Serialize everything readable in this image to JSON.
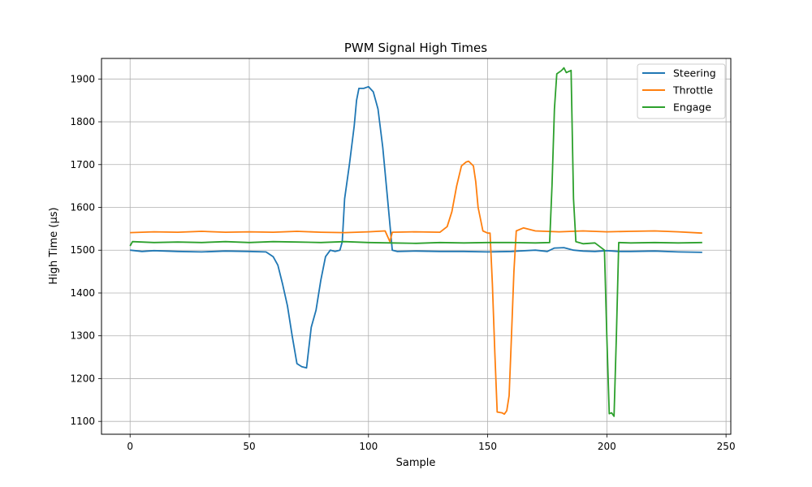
{
  "chart_data": {
    "type": "line",
    "title": "PWM Signal High Times",
    "xlabel": "Sample",
    "ylabel": "High Time (µs)",
    "xlim": [
      -12,
      252
    ],
    "ylim": [
      1070,
      1948
    ],
    "xticks": [
      0,
      50,
      100,
      150,
      200,
      250
    ],
    "yticks": [
      1100,
      1200,
      1300,
      1400,
      1500,
      1600,
      1700,
      1800,
      1900
    ],
    "grid": true,
    "legend_position": "top-right",
    "series": [
      {
        "name": "Steering",
        "color": "#1f77b4",
        "points": [
          [
            0,
            1500
          ],
          [
            5,
            1497
          ],
          [
            10,
            1499
          ],
          [
            20,
            1497
          ],
          [
            30,
            1496
          ],
          [
            40,
            1498
          ],
          [
            50,
            1497
          ],
          [
            57,
            1496
          ],
          [
            60,
            1485
          ],
          [
            62,
            1465
          ],
          [
            64,
            1420
          ],
          [
            66,
            1370
          ],
          [
            68,
            1300
          ],
          [
            70,
            1235
          ],
          [
            72,
            1228
          ],
          [
            74,
            1225
          ],
          [
            76,
            1320
          ],
          [
            78,
            1360
          ],
          [
            80,
            1430
          ],
          [
            82,
            1485
          ],
          [
            84,
            1500
          ],
          [
            86,
            1497
          ],
          [
            88,
            1500
          ],
          [
            89,
            1520
          ],
          [
            90,
            1620
          ],
          [
            92,
            1700
          ],
          [
            94,
            1790
          ],
          [
            95,
            1850
          ],
          [
            96,
            1878
          ],
          [
            98,
            1878
          ],
          [
            100,
            1882
          ],
          [
            102,
            1870
          ],
          [
            104,
            1830
          ],
          [
            106,
            1740
          ],
          [
            108,
            1620
          ],
          [
            110,
            1500
          ],
          [
            112,
            1497
          ],
          [
            120,
            1498
          ],
          [
            130,
            1497
          ],
          [
            140,
            1497
          ],
          [
            150,
            1496
          ],
          [
            160,
            1497
          ],
          [
            170,
            1500
          ],
          [
            175,
            1497
          ],
          [
            178,
            1505
          ],
          [
            182,
            1506
          ],
          [
            186,
            1500
          ],
          [
            190,
            1498
          ],
          [
            195,
            1497
          ],
          [
            200,
            1499
          ],
          [
            205,
            1497
          ],
          [
            210,
            1497
          ],
          [
            220,
            1498
          ],
          [
            230,
            1496
          ],
          [
            240,
            1495
          ]
        ]
      },
      {
        "name": "Throttle",
        "color": "#ff7f0e",
        "points": [
          [
            0,
            1541
          ],
          [
            10,
            1543
          ],
          [
            20,
            1542
          ],
          [
            30,
            1544
          ],
          [
            40,
            1542
          ],
          [
            50,
            1543
          ],
          [
            60,
            1542
          ],
          [
            70,
            1544
          ],
          [
            80,
            1542
          ],
          [
            90,
            1541
          ],
          [
            100,
            1543
          ],
          [
            107,
            1545
          ],
          [
            109,
            1520
          ],
          [
            110,
            1542
          ],
          [
            120,
            1543
          ],
          [
            130,
            1542
          ],
          [
            133,
            1555
          ],
          [
            135,
            1590
          ],
          [
            137,
            1650
          ],
          [
            139,
            1697
          ],
          [
            141,
            1706
          ],
          [
            142,
            1708
          ],
          [
            144,
            1697
          ],
          [
            145,
            1660
          ],
          [
            146,
            1600
          ],
          [
            148,
            1545
          ],
          [
            150,
            1540
          ],
          [
            151,
            1540
          ],
          [
            152,
            1420
          ],
          [
            153,
            1260
          ],
          [
            154,
            1122
          ],
          [
            156,
            1120
          ],
          [
            157,
            1117
          ],
          [
            158,
            1125
          ],
          [
            159,
            1160
          ],
          [
            160,
            1300
          ],
          [
            161,
            1450
          ],
          [
            162,
            1545
          ],
          [
            165,
            1552
          ],
          [
            170,
            1545
          ],
          [
            180,
            1543
          ],
          [
            190,
            1545
          ],
          [
            200,
            1543
          ],
          [
            210,
            1544
          ],
          [
            220,
            1545
          ],
          [
            230,
            1543
          ],
          [
            240,
            1540
          ]
        ]
      },
      {
        "name": "Engage",
        "color": "#2ca02c",
        "points": [
          [
            0,
            1510
          ],
          [
            1,
            1520
          ],
          [
            10,
            1518
          ],
          [
            20,
            1519
          ],
          [
            30,
            1518
          ],
          [
            40,
            1520
          ],
          [
            50,
            1518
          ],
          [
            60,
            1520
          ],
          [
            70,
            1519
          ],
          [
            80,
            1518
          ],
          [
            90,
            1520
          ],
          [
            100,
            1518
          ],
          [
            110,
            1517
          ],
          [
            120,
            1516
          ],
          [
            130,
            1518
          ],
          [
            140,
            1517
          ],
          [
            150,
            1518
          ],
          [
            160,
            1518
          ],
          [
            170,
            1517
          ],
          [
            176,
            1518
          ],
          [
            177,
            1650
          ],
          [
            178,
            1830
          ],
          [
            179,
            1912
          ],
          [
            181,
            1920
          ],
          [
            182,
            1926
          ],
          [
            183,
            1915
          ],
          [
            185,
            1920
          ],
          [
            186,
            1620
          ],
          [
            187,
            1520
          ],
          [
            190,
            1515
          ],
          [
            195,
            1517
          ],
          [
            199,
            1500
          ],
          [
            200,
            1300
          ],
          [
            201,
            1118
          ],
          [
            202,
            1120
          ],
          [
            203,
            1112
          ],
          [
            204,
            1300
          ],
          [
            205,
            1518
          ],
          [
            210,
            1517
          ],
          [
            220,
            1518
          ],
          [
            230,
            1517
          ],
          [
            240,
            1518
          ]
        ]
      }
    ]
  }
}
